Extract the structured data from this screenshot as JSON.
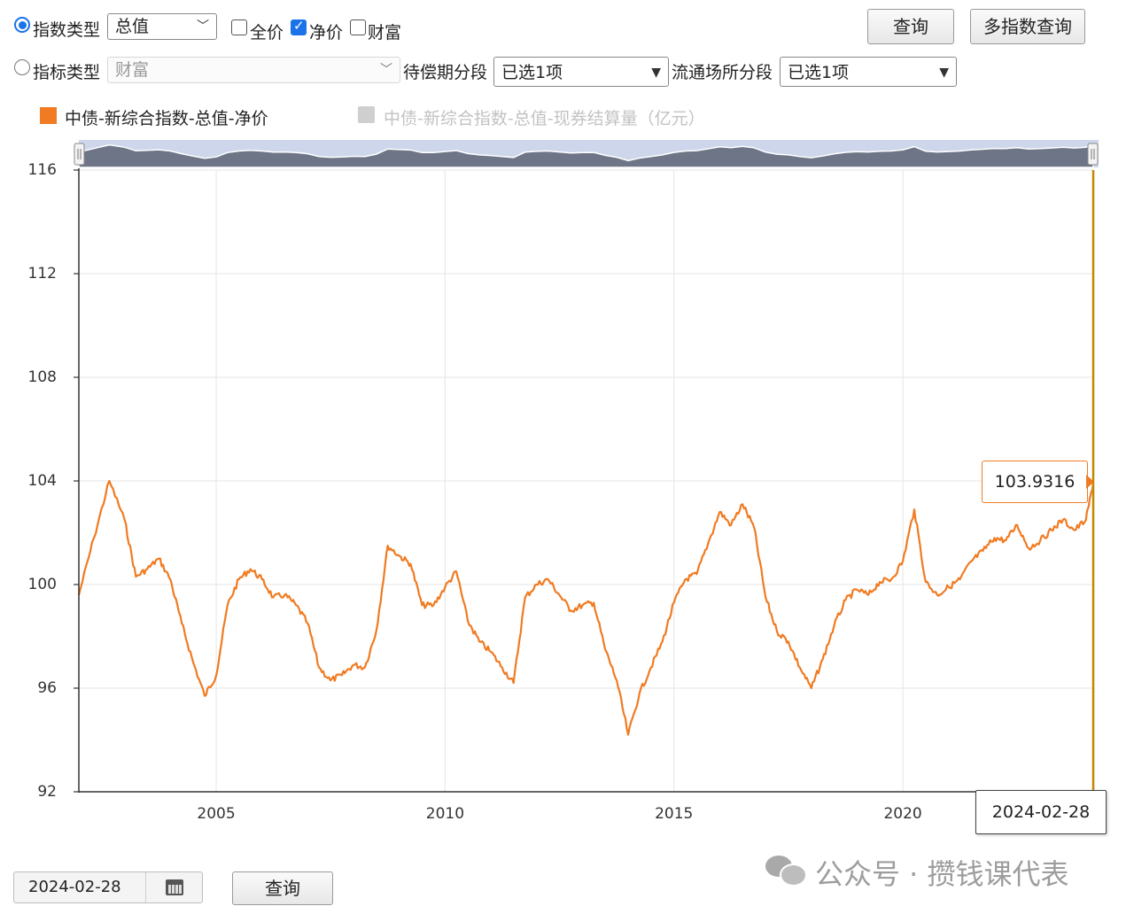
{
  "controls": {
    "index_type_label": "指数类型",
    "index_type_value": "总值",
    "check_full": "全价",
    "check_net": "净价",
    "check_wealth": "财富",
    "indicator_type_label": "指标类型",
    "indicator_type_value": "财富",
    "maturity_label": "待偿期分段",
    "maturity_value": "已选1项",
    "venue_label": "流通场所分段",
    "venue_value": "已选1项",
    "query_button": "查询",
    "multi_query_button": "多指数查询"
  },
  "legend": {
    "active": "中债-新综合指数-总值-净价",
    "inactive": "中债-新综合指数-总值-现券结算量（亿元）"
  },
  "tooltip": {
    "value": "103.9316",
    "date": "2024-02-28"
  },
  "footer": {
    "date_value": "2024-02-28",
    "query_button": "查询"
  },
  "watermark": {
    "text": "公众号 · 攒钱课代表"
  },
  "colors": {
    "series": "#f07b22",
    "cursor": "#c08a00",
    "navigator_fill": "#6d7587",
    "navigator_bg": "#cdd6ea"
  },
  "chart_data": {
    "type": "line",
    "ylim": [
      92,
      116
    ],
    "yticks": [
      92,
      96,
      100,
      104,
      108,
      112,
      116
    ],
    "ytick_labels": [
      "92",
      "96",
      "100",
      "104",
      "108",
      "112",
      "116"
    ],
    "xticks": [
      2005,
      2010,
      2015,
      2020
    ],
    "xtick_labels": [
      "2005",
      "2010",
      "2015",
      "2020"
    ],
    "x_range": [
      "2002-01-01",
      "2024-02-28"
    ],
    "grid": true,
    "legend_position": "top-left",
    "series": [
      {
        "name": "中债-新综合指数-总值-净价",
        "x": [
          "2002-01",
          "2002-05",
          "2002-09",
          "2003-01",
          "2003-04",
          "2003-07",
          "2003-10",
          "2004-01",
          "2004-04",
          "2004-07",
          "2004-10",
          "2005-01",
          "2005-04",
          "2005-07",
          "2005-10",
          "2006-01",
          "2006-04",
          "2006-07",
          "2006-10",
          "2007-01",
          "2007-04",
          "2007-07",
          "2007-10",
          "2008-01",
          "2008-04",
          "2008-07",
          "2008-10",
          "2009-01",
          "2009-04",
          "2009-07",
          "2009-10",
          "2010-01",
          "2010-04",
          "2010-07",
          "2010-10",
          "2011-01",
          "2011-04",
          "2011-07",
          "2011-10",
          "2012-01",
          "2012-04",
          "2012-07",
          "2012-10",
          "2013-01",
          "2013-04",
          "2013-07",
          "2013-10",
          "2014-01",
          "2014-04",
          "2014-07",
          "2014-10",
          "2015-01",
          "2015-04",
          "2015-07",
          "2015-10",
          "2016-01",
          "2016-04",
          "2016-07",
          "2016-10",
          "2017-01",
          "2017-04",
          "2017-07",
          "2017-10",
          "2018-01",
          "2018-04",
          "2018-07",
          "2018-10",
          "2019-01",
          "2019-04",
          "2019-07",
          "2019-10",
          "2020-01",
          "2020-04",
          "2020-07",
          "2020-10",
          "2021-01",
          "2021-04",
          "2021-07",
          "2021-10",
          "2022-01",
          "2022-04",
          "2022-07",
          "2022-10",
          "2023-01",
          "2023-04",
          "2023-07",
          "2023-10",
          "2024-01",
          "2024-02-28"
        ],
        "values": [
          99.6,
          101.8,
          104.0,
          102.5,
          100.3,
          100.6,
          101.0,
          100.2,
          98.5,
          97.0,
          95.7,
          96.5,
          99.2,
          100.2,
          100.6,
          100.2,
          99.5,
          99.6,
          99.2,
          98.5,
          96.8,
          96.3,
          96.5,
          96.9,
          96.8,
          98.2,
          101.5,
          101.1,
          100.8,
          99.2,
          99.2,
          99.9,
          100.5,
          98.6,
          97.8,
          97.4,
          96.8,
          96.2,
          99.5,
          100.0,
          100.2,
          99.6,
          99.0,
          99.2,
          99.3,
          97.5,
          96.3,
          94.2,
          95.8,
          96.8,
          97.8,
          99.3,
          100.2,
          100.4,
          101.6,
          102.8,
          102.3,
          103.1,
          102.2,
          99.5,
          98.2,
          97.8,
          96.8,
          96.0,
          97.1,
          98.4,
          99.4,
          99.8,
          99.6,
          100.1,
          100.2,
          100.9,
          102.9,
          100.1,
          99.6,
          99.9,
          100.2,
          100.9,
          101.3,
          101.8,
          101.7,
          102.3,
          101.4,
          101.7,
          102.1,
          102.5,
          102.1,
          102.5,
          103.9316
        ]
      }
    ]
  }
}
